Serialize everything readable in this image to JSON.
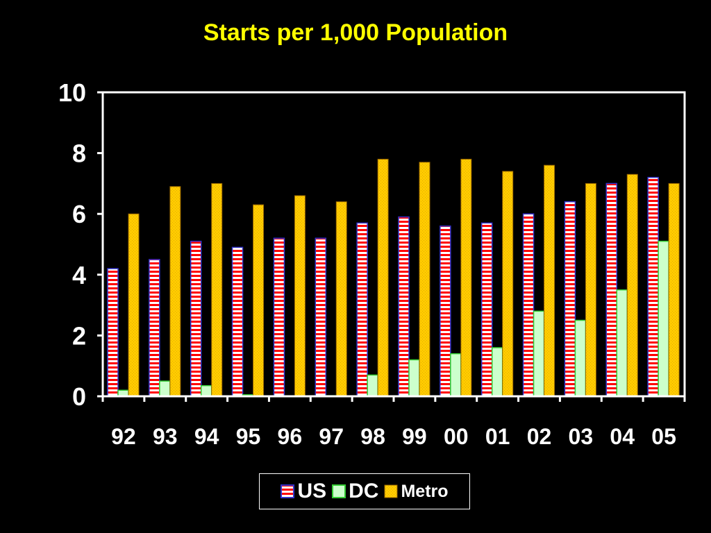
{
  "slide": {
    "title": "Starts per 1,000 Population"
  },
  "colors": {
    "background": "#000000",
    "title": "#ffff00",
    "axis": "#ffffff",
    "us_stripe_red": "#ff0000",
    "us_stripe_white": "#ffffff",
    "us_border": "#3333cc",
    "dc_fill": "#ccffcc",
    "dc_border": "#33cc33",
    "metro_fill": "#ffcc00",
    "metro_border": "#996600"
  },
  "legend": {
    "placement": "bottom-center",
    "items": [
      {
        "label": "US"
      },
      {
        "label": "DC"
      },
      {
        "label": "Metro"
      }
    ]
  },
  "chart_data": {
    "type": "bar",
    "title": "Starts per 1,000 Population",
    "xlabel": "",
    "ylabel": "",
    "ylim": [
      0,
      10
    ],
    "yticks": [
      "0",
      "2",
      "4",
      "6",
      "8",
      "10"
    ],
    "grid": false,
    "legend_position": "bottom-center",
    "categories": [
      "92",
      "93",
      "94",
      "95",
      "96",
      "97",
      "98",
      "99",
      "00",
      "01",
      "02",
      "03",
      "04",
      "05"
    ],
    "series": [
      {
        "name": "US",
        "values": [
          4.2,
          4.5,
          5.1,
          4.9,
          5.2,
          5.2,
          5.7,
          5.9,
          5.6,
          5.7,
          6.0,
          6.4,
          7.0,
          7.2
        ]
      },
      {
        "name": "DC",
        "values": [
          0.2,
          0.5,
          0.35,
          0.05,
          0.0,
          0.02,
          0.7,
          1.2,
          1.4,
          1.6,
          2.8,
          2.5,
          3.5,
          5.1
        ]
      },
      {
        "name": "Metro",
        "values": [
          6.0,
          6.9,
          7.0,
          6.3,
          6.6,
          6.4,
          7.8,
          7.7,
          7.8,
          7.4,
          7.6,
          7.0,
          7.3,
          7.0
        ]
      }
    ]
  }
}
